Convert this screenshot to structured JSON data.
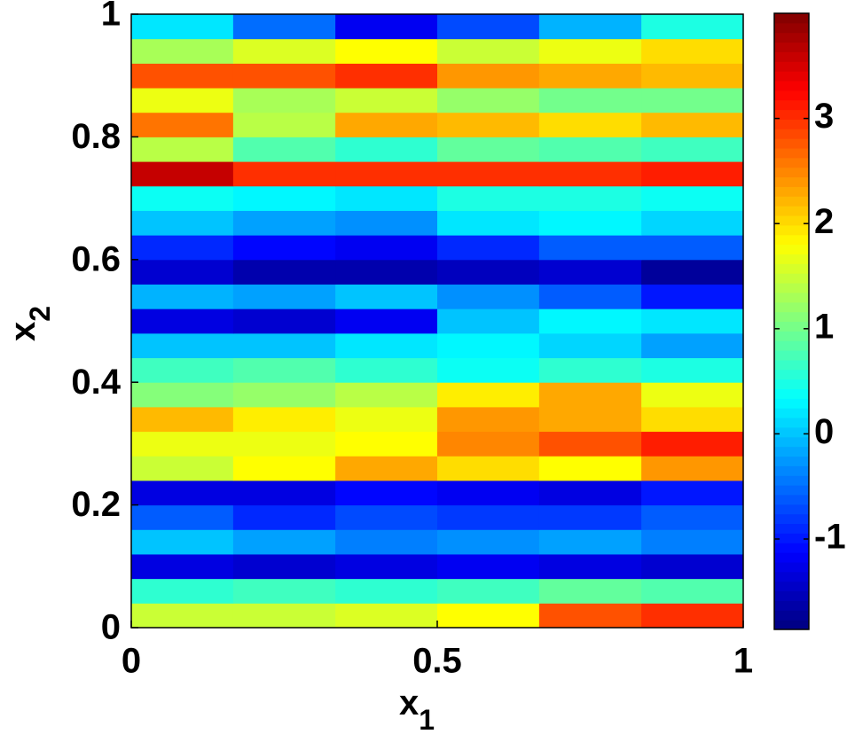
{
  "chart_data": {
    "type": "heatmap",
    "colormap": "jet",
    "xlabel": {
      "text": "x",
      "sub": "1"
    },
    "ylabel": {
      "text": "x",
      "sub": "2"
    },
    "xlim": [
      0,
      1
    ],
    "xticks": [
      0,
      0.5,
      1
    ],
    "ylim": [
      0,
      1
    ],
    "yticks": [
      0,
      0.2,
      0.4,
      0.6,
      0.8,
      1
    ],
    "clim": [
      -1.86,
      4.0
    ],
    "cticks": [
      -1,
      0,
      1,
      2,
      3
    ],
    "x": [
      0.083,
      0.25,
      0.417,
      0.583,
      0.75,
      0.917
    ],
    "y": [
      0.02,
      0.06,
      0.1,
      0.14,
      0.18,
      0.22,
      0.26,
      0.3,
      0.34,
      0.38,
      0.42,
      0.46,
      0.5,
      0.54,
      0.58,
      0.62,
      0.66,
      0.7,
      0.74,
      0.78,
      0.82,
      0.86,
      0.9,
      0.94,
      0.98
    ],
    "z": [
      [
        1.5,
        1.5,
        1.6,
        1.8,
        2.8,
        3.0
      ],
      [
        0.6,
        0.7,
        0.6,
        0.7,
        0.9,
        0.8
      ],
      [
        -1.3,
        -1.4,
        -1.3,
        -1.2,
        -1.3,
        -1.4
      ],
      [
        0.0,
        -0.2,
        -0.4,
        -0.3,
        -0.2,
        -0.4
      ],
      [
        -0.6,
        -0.9,
        -0.7,
        -0.8,
        -0.8,
        -0.6
      ],
      [
        -1.3,
        -1.3,
        -1.1,
        -1.2,
        -1.3,
        -1.0
      ],
      [
        1.5,
        1.8,
        2.3,
        2.0,
        1.8,
        2.4
      ],
      [
        1.7,
        1.7,
        1.8,
        2.5,
        2.8,
        3.1
      ],
      [
        2.2,
        1.9,
        1.7,
        2.4,
        2.3,
        2.0
      ],
      [
        1.1,
        1.2,
        1.4,
        1.9,
        2.3,
        1.7
      ],
      [
        0.7,
        0.8,
        0.6,
        0.4,
        0.6,
        0.5
      ],
      [
        0.0,
        0.0,
        0.2,
        0.3,
        0.1,
        -0.2
      ],
      [
        -1.3,
        -1.4,
        -1.2,
        0.0,
        0.3,
        0.2
      ],
      [
        -0.1,
        -0.2,
        0.0,
        -0.3,
        -0.6,
        -1.0
      ],
      [
        -1.4,
        -1.6,
        -1.6,
        -1.5,
        -1.4,
        -1.7
      ],
      [
        -0.9,
        -1.1,
        -1.2,
        -0.9,
        -0.6,
        -0.6
      ],
      [
        0.0,
        -0.2,
        -0.3,
        0.2,
        0.3,
        0.1
      ],
      [
        0.4,
        0.3,
        0.2,
        0.5,
        0.5,
        0.4
      ],
      [
        3.6,
        3.0,
        3.0,
        3.0,
        3.0,
        3.1
      ],
      [
        1.4,
        0.8,
        0.6,
        0.9,
        0.8,
        0.7
      ],
      [
        2.6,
        1.4,
        2.3,
        2.2,
        2.0,
        2.2
      ],
      [
        1.7,
        1.3,
        1.5,
        1.2,
        1.0,
        1.0
      ],
      [
        2.8,
        2.8,
        3.0,
        2.4,
        2.3,
        2.2
      ],
      [
        1.3,
        1.6,
        1.8,
        1.5,
        1.7,
        2.0
      ],
      [
        0.2,
        -0.5,
        -1.2,
        -0.7,
        -0.1,
        0.5
      ]
    ]
  }
}
